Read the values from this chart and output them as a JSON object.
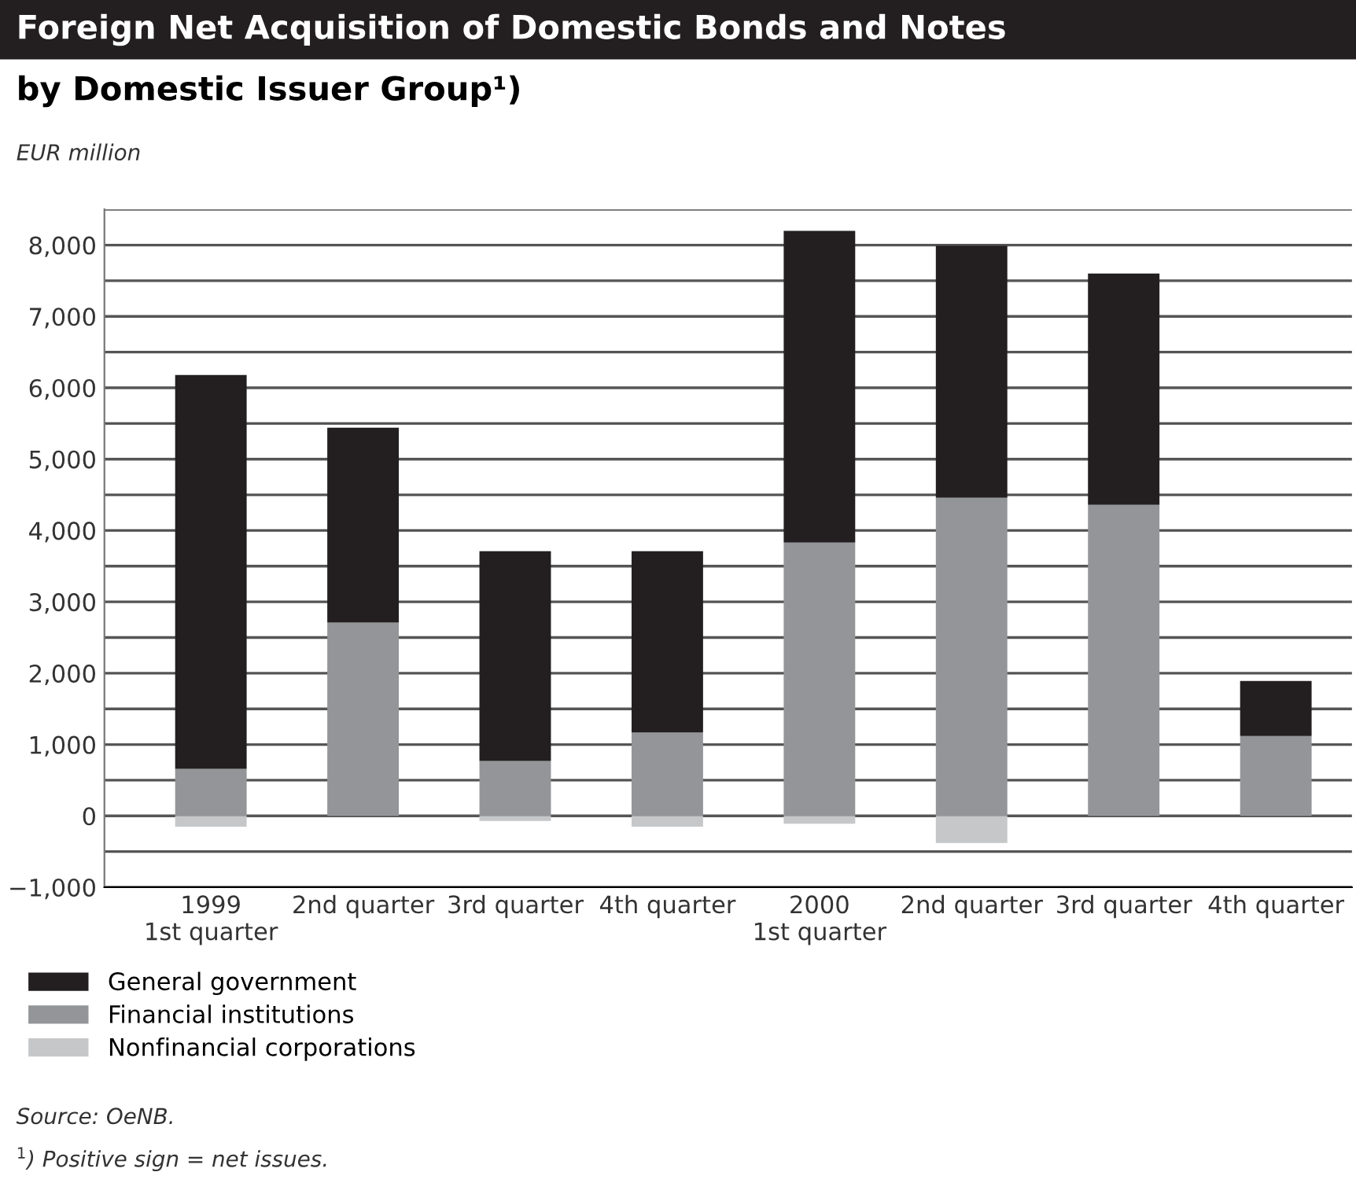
{
  "chart_data": {
    "type": "bar",
    "title": "Foreign Net Acquisition of Domestic Bonds and Notes",
    "subtitle": "by Domestic Issuer Group¹)",
    "ylabel": "EUR million",
    "categories": [
      "1999\n1st quarter",
      "2nd quarter",
      "3rd quarter",
      "4th quarter",
      "2000\n1st quarter",
      "2nd quarter",
      "3rd quarter",
      "4th quarter"
    ],
    "stacked": true,
    "series": [
      {
        "name": "Nonfinancial corporations",
        "color": "#c6c7c9",
        "values": [
          -150,
          null,
          -70,
          -150,
          -110,
          -380,
          0,
          0
        ]
      },
      {
        "name": "Financial institutions",
        "color": "#939598",
        "values": [
          660,
          2710,
          770,
          1170,
          3830,
          4460,
          4360,
          1120
        ]
      },
      {
        "name": "General government",
        "color": "#231f20",
        "values": [
          5520,
          2730,
          2940,
          2540,
          4370,
          3530,
          3240,
          770
        ]
      }
    ],
    "ylim": [
      -1000,
      8500
    ],
    "yticks": [
      {
        "value": -1000,
        "label": "−1,000"
      },
      {
        "value": -500,
        "label": null
      },
      0,
      {
        "value": 500,
        "label": null
      },
      {
        "value": 1000,
        "label": "1,000"
      },
      {
        "value": 1500,
        "label": null
      },
      {
        "value": 2000,
        "label": "2,000"
      },
      {
        "value": 2500,
        "label": null
      },
      {
        "value": 3000,
        "label": "3,000"
      },
      {
        "value": 3500,
        "label": null
      },
      {
        "value": 4000,
        "label": "4,000"
      },
      {
        "value": 4500,
        "label": null
      },
      {
        "value": 5000,
        "label": "5,000"
      },
      {
        "value": 5500,
        "label": null
      },
      {
        "value": 6000,
        "label": "6,000"
      },
      {
        "value": 6500,
        "label": null
      },
      {
        "value": 7000,
        "label": "7,000"
      },
      {
        "value": 7500,
        "label": null
      },
      {
        "value": 8000,
        "label": "8,000"
      },
      {
        "value": 8500,
        "label": null
      }
    ],
    "grid": "y",
    "legend": "bottom",
    "annotations": [
      "Source: OeNB.",
      "$^{1}$) Positive sign = net issues."
    ]
  }
}
